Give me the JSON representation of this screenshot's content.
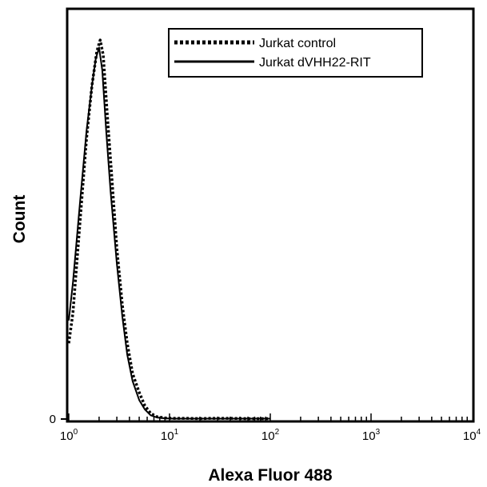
{
  "chart_data": {
    "type": "line",
    "xlabel": "Alexa Fluor 488",
    "ylabel": "Count",
    "x_scale": "log",
    "xlim": [
      1,
      10000
    ],
    "ylim": [
      0,
      1.05
    ],
    "x_ticks": [
      {
        "value": 1,
        "base": "10",
        "exp": "0"
      },
      {
        "value": 10,
        "base": "10",
        "exp": "1"
      },
      {
        "value": 100,
        "base": "10",
        "exp": "2"
      },
      {
        "value": 1000,
        "base": "10",
        "exp": "3"
      },
      {
        "value": 10000,
        "base": "10",
        "exp": "4"
      }
    ],
    "y_ticks": [
      {
        "value": 0,
        "label": "0"
      }
    ],
    "grid": false,
    "legend_position": "top-right",
    "series": [
      {
        "name": "Jurkat control",
        "style": "dotted",
        "color": "#000000",
        "x": [
          1.0,
          1.1,
          1.3,
          1.5,
          1.7,
          1.9,
          2.05,
          2.2,
          2.4,
          2.7,
          3.0,
          3.4,
          3.8,
          4.3,
          5.0,
          5.7,
          6.5,
          7.5,
          9.0,
          11,
          15,
          20,
          25,
          40,
          60,
          80,
          100
        ],
        "y": [
          0.2,
          0.28,
          0.53,
          0.74,
          0.88,
          0.97,
          1.0,
          0.96,
          0.81,
          0.62,
          0.45,
          0.3,
          0.2,
          0.12,
          0.07,
          0.035,
          0.015,
          0.006,
          0.003,
          0.002,
          0.002,
          0.001,
          0.002,
          0.002,
          0.001,
          0.001,
          0.001
        ]
      },
      {
        "name": "Jurkat dVHH22-RIT",
        "style": "solid",
        "color": "#000000",
        "x": [
          1.0,
          1.1,
          1.3,
          1.5,
          1.7,
          1.85,
          2.0,
          2.15,
          2.35,
          2.6,
          3.0,
          3.4,
          3.8,
          4.3,
          5.0,
          5.7,
          6.5,
          7.5,
          9.0,
          11,
          15,
          20,
          30,
          50,
          80,
          100
        ],
        "y": [
          0.26,
          0.36,
          0.58,
          0.76,
          0.88,
          0.95,
          0.98,
          0.92,
          0.76,
          0.6,
          0.41,
          0.27,
          0.17,
          0.1,
          0.05,
          0.025,
          0.01,
          0.004,
          0.002,
          0.001,
          0.001,
          0.001,
          0.001,
          0.001,
          0.001,
          0.001
        ]
      }
    ]
  }
}
